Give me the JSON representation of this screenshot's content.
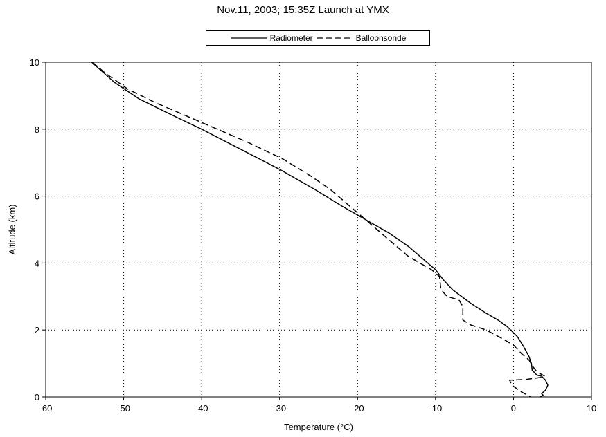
{
  "chart_data": {
    "type": "line",
    "title": "Nov.11, 2003;  15:35Z Launch at YMX",
    "xlabel": "Temperature (°C)",
    "ylabel": "Altitude (km)",
    "xlim": [
      -60,
      10
    ],
    "ylim": [
      0,
      10
    ],
    "x_ticks": [
      "-60",
      "-50",
      "-40",
      "-30",
      "-20",
      "-10",
      "0",
      "10"
    ],
    "y_ticks": [
      "0",
      "2",
      "4",
      "6",
      "8",
      "10"
    ],
    "x_tick_values": [
      -60,
      -50,
      -40,
      -30,
      -20,
      -10,
      0,
      10
    ],
    "y_tick_values": [
      0,
      2,
      4,
      6,
      8,
      10
    ],
    "grid": true,
    "legend_position": "top-center",
    "series": [
      {
        "name": "Radiometer",
        "style": "solid",
        "color": "#000000",
        "x": [
          -54.1,
          -51.2,
          -48.0,
          -44.5,
          -40.0,
          -35.0,
          -30.0,
          -25.5,
          -22.0,
          -19.0,
          -16.0,
          -13.5,
          -11.5,
          -10.0,
          -9.0,
          -7.8,
          -5.5,
          -3.5,
          -2.0,
          -0.8,
          0.5,
          1.3,
          2.0,
          2.3,
          2.4,
          3.0,
          3.6,
          4.1,
          4.4,
          4.1,
          3.6,
          3.8,
          3.4
        ],
        "y": [
          10.0,
          9.4,
          8.9,
          8.5,
          8.0,
          7.4,
          6.8,
          6.2,
          5.7,
          5.3,
          4.9,
          4.5,
          4.1,
          3.8,
          3.5,
          3.2,
          2.8,
          2.5,
          2.3,
          2.1,
          1.8,
          1.5,
          1.2,
          1.0,
          0.8,
          0.65,
          0.62,
          0.5,
          0.35,
          0.2,
          0.1,
          0.05,
          0.0
        ]
      },
      {
        "name": "Balloonsonde",
        "style": "dashed",
        "color": "#000000",
        "x": [
          -54.0,
          -52.5,
          -49.5,
          -46.0,
          -42.0,
          -38.0,
          -34.0,
          -29.5,
          -26.0,
          -23.5,
          -21.5,
          -19.5,
          -17.5,
          -15.5,
          -13.5,
          -12.0,
          -10.5,
          -9.5,
          -9.3,
          -8.5,
          -7.0,
          -6.5,
          -6.5,
          -5.5,
          -3.5,
          -1.5,
          0.0,
          1.0,
          2.0,
          2.5,
          3.0,
          4.0,
          3.5,
          1.5,
          -0.5,
          -0.2,
          1.0,
          2.2
        ],
        "y": [
          10.0,
          9.7,
          9.2,
          8.8,
          8.4,
          8.0,
          7.6,
          7.1,
          6.6,
          6.2,
          5.8,
          5.4,
          5.0,
          4.6,
          4.2,
          4.0,
          3.8,
          3.6,
          3.2,
          3.0,
          2.9,
          2.7,
          2.3,
          2.15,
          2.0,
          1.75,
          1.55,
          1.3,
          1.1,
          0.9,
          0.75,
          0.62,
          0.58,
          0.52,
          0.5,
          0.35,
          0.15,
          0.0
        ]
      }
    ]
  }
}
